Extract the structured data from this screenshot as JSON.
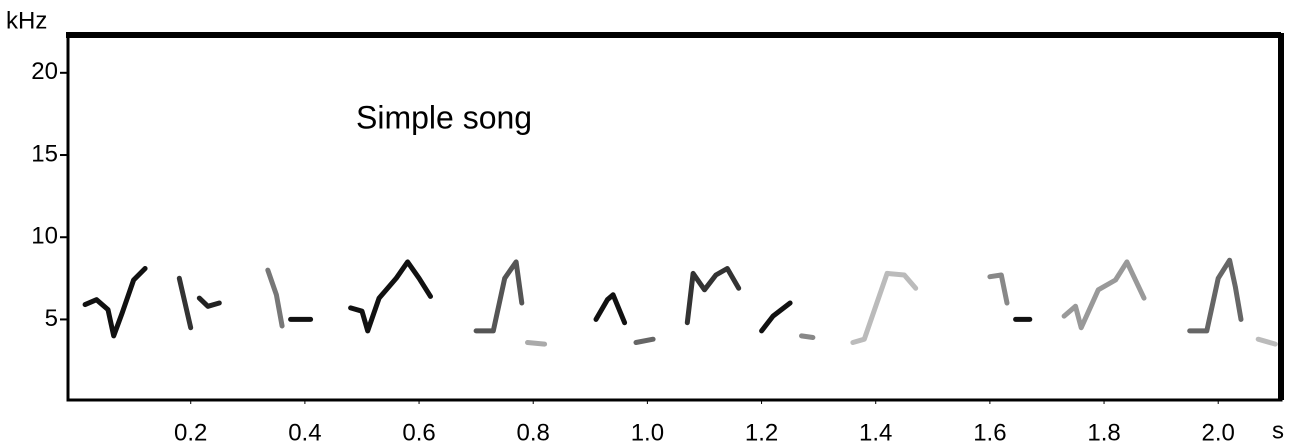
{
  "chart_data": {
    "type": "spectrogram",
    "annotation": "Simple song",
    "x_label": "s",
    "y_label": "kHz",
    "xlim": [
      -0.015,
      2.11
    ],
    "ylim": [
      0.1,
      22.3
    ],
    "xticks": [
      0.2,
      0.4,
      0.6,
      0.8,
      {
        "value": 1,
        "label": "1.0"
      },
      1.2,
      1.4,
      1.6,
      1.8,
      {
        "value": 2,
        "label": "2.0"
      }
    ],
    "yticks": [
      5,
      10,
      15,
      20
    ],
    "series": [
      {
        "color": "#111111",
        "x": [
          0.015,
          0.035,
          0.055,
          0.065,
          0.08,
          0.1,
          0.12
        ],
        "values": [
          5.9,
          6.2,
          5.6,
          4.0,
          5.4,
          7.4,
          8.1
        ]
      },
      {
        "color": "#333333",
        "x": [
          0.18,
          0.19,
          0.2
        ],
        "values": [
          7.5,
          6.0,
          4.5
        ]
      },
      {
        "color": "#222222",
        "x": [
          0.215,
          0.23,
          0.25
        ],
        "values": [
          6.3,
          5.8,
          6.0
        ]
      },
      {
        "color": "#777777",
        "x": [
          0.335,
          0.35,
          0.36
        ],
        "values": [
          8.0,
          6.5,
          4.6
        ]
      },
      {
        "color": "#111111",
        "x": [
          0.375,
          0.39,
          0.41
        ],
        "values": [
          5.0,
          5.0,
          5.0
        ]
      },
      {
        "color": "#111111",
        "x": [
          0.48,
          0.5,
          0.51,
          0.53,
          0.56,
          0.58,
          0.6,
          0.62
        ],
        "values": [
          5.7,
          5.5,
          4.3,
          6.3,
          7.5,
          8.5,
          7.5,
          6.4
        ]
      },
      {
        "color": "#555555",
        "x": [
          0.7,
          0.73,
          0.75,
          0.77,
          0.78
        ],
        "values": [
          4.3,
          4.3,
          7.5,
          8.5,
          6.0
        ]
      },
      {
        "color": "#aaaaaa",
        "x": [
          0.79,
          0.82
        ],
        "values": [
          3.6,
          3.5
        ]
      },
      {
        "color": "#111111",
        "x": [
          0.91,
          0.93,
          0.94,
          0.96
        ],
        "values": [
          5.0,
          6.2,
          6.5,
          4.8
        ]
      },
      {
        "color": "#666666",
        "x": [
          0.98,
          1.01
        ],
        "values": [
          3.6,
          3.8
        ]
      },
      {
        "color": "#333333",
        "x": [
          1.07,
          1.08,
          1.1,
          1.12,
          1.14,
          1.16
        ],
        "values": [
          4.8,
          7.8,
          6.8,
          7.7,
          8.1,
          6.9
        ]
      },
      {
        "color": "#111111",
        "x": [
          1.2,
          1.22,
          1.25
        ],
        "values": [
          4.3,
          5.2,
          6.0
        ]
      },
      {
        "color": "#888888",
        "x": [
          1.27,
          1.29
        ],
        "values": [
          4.0,
          3.9
        ]
      },
      {
        "color": "#bbbbbb",
        "x": [
          1.36,
          1.38,
          1.42,
          1.45,
          1.47
        ],
        "values": [
          3.6,
          3.8,
          7.8,
          7.7,
          6.9
        ]
      },
      {
        "color": "#888888",
        "x": [
          1.6,
          1.62,
          1.63
        ],
        "values": [
          7.6,
          7.7,
          6.0
        ]
      },
      {
        "color": "#111111",
        "x": [
          1.645,
          1.67
        ],
        "values": [
          5.0,
          5.0
        ]
      },
      {
        "color": "#999999",
        "x": [
          1.73,
          1.75,
          1.76,
          1.79,
          1.82,
          1.84,
          1.87
        ],
        "values": [
          5.2,
          5.8,
          4.5,
          6.8,
          7.4,
          8.5,
          6.3
        ]
      },
      {
        "color": "#666666",
        "x": [
          1.95,
          1.98,
          2.0,
          2.02,
          2.03,
          2.04
        ],
        "values": [
          4.3,
          4.3,
          7.5,
          8.6,
          7.0,
          5.0
        ]
      },
      {
        "color": "#bbbbbb",
        "x": [
          2.07,
          2.1
        ],
        "values": [
          3.8,
          3.5
        ]
      }
    ]
  }
}
